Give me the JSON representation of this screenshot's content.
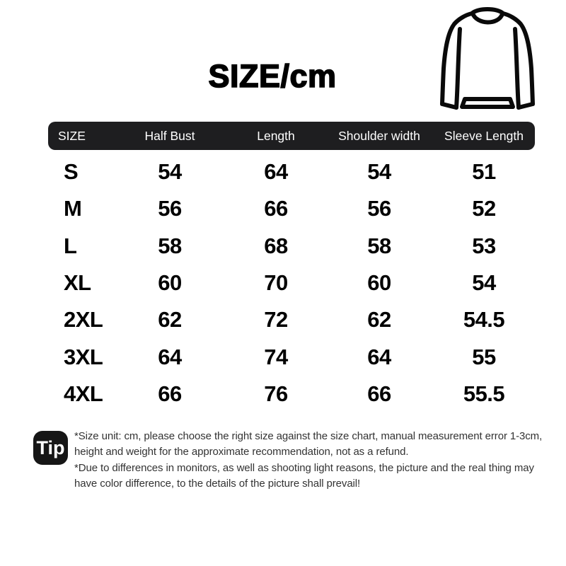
{
  "title": "SIZE/cm",
  "colors": {
    "background": "#ffffff",
    "header_bar": "#1e1e20",
    "header_text": "#ffffff",
    "body_text": "#000000",
    "tip_badge": "#161616",
    "tip_text": "#333333"
  },
  "garment_icon": "crewneck-sweater-outline",
  "table": {
    "columns": [
      "SIZE",
      "Half Bust",
      "Length",
      "Shoulder width",
      "Sleeve Length"
    ],
    "rows": [
      {
        "size": "S",
        "half_bust": "54",
        "length": "64",
        "shoulder_width": "54",
        "sleeve_length": "51"
      },
      {
        "size": "M",
        "half_bust": "56",
        "length": "66",
        "shoulder_width": "56",
        "sleeve_length": "52"
      },
      {
        "size": "L",
        "half_bust": "58",
        "length": "68",
        "shoulder_width": "58",
        "sleeve_length": "53"
      },
      {
        "size": "XL",
        "half_bust": "60",
        "length": "70",
        "shoulder_width": "60",
        "sleeve_length": "54"
      },
      {
        "size": "2XL",
        "half_bust": "62",
        "length": "72",
        "shoulder_width": "62",
        "sleeve_length": "54.5"
      },
      {
        "size": "3XL",
        "half_bust": "64",
        "length": "74",
        "shoulder_width": "64",
        "sleeve_length": "55"
      },
      {
        "size": "4XL",
        "half_bust": "66",
        "length": "76",
        "shoulder_width": "66",
        "sleeve_length": "55.5"
      }
    ]
  },
  "tip": {
    "badge_label": "Tip",
    "notes": [
      "*Size unit: cm, please choose the right size against the size chart, manual measurement error 1-3cm, height and weight for the approximate recommendation, not as a refund.",
      "*Due to differences in monitors, as well as shooting light reasons, the picture and the real thing may have color difference, to the details of the picture shall prevail!"
    ]
  },
  "chart_data": {
    "type": "table",
    "title": "SIZE/cm",
    "unit": "cm",
    "columns": [
      "SIZE",
      "Half Bust",
      "Length",
      "Shoulder width",
      "Sleeve Length"
    ],
    "rows": [
      [
        "S",
        54,
        64,
        54,
        51
      ],
      [
        "M",
        56,
        66,
        56,
        52
      ],
      [
        "L",
        58,
        68,
        58,
        53
      ],
      [
        "XL",
        60,
        70,
        60,
        54
      ],
      [
        "2XL",
        62,
        72,
        62,
        54.5
      ],
      [
        "3XL",
        64,
        74,
        64,
        55
      ],
      [
        "4XL",
        66,
        76,
        66,
        55.5
      ]
    ]
  }
}
